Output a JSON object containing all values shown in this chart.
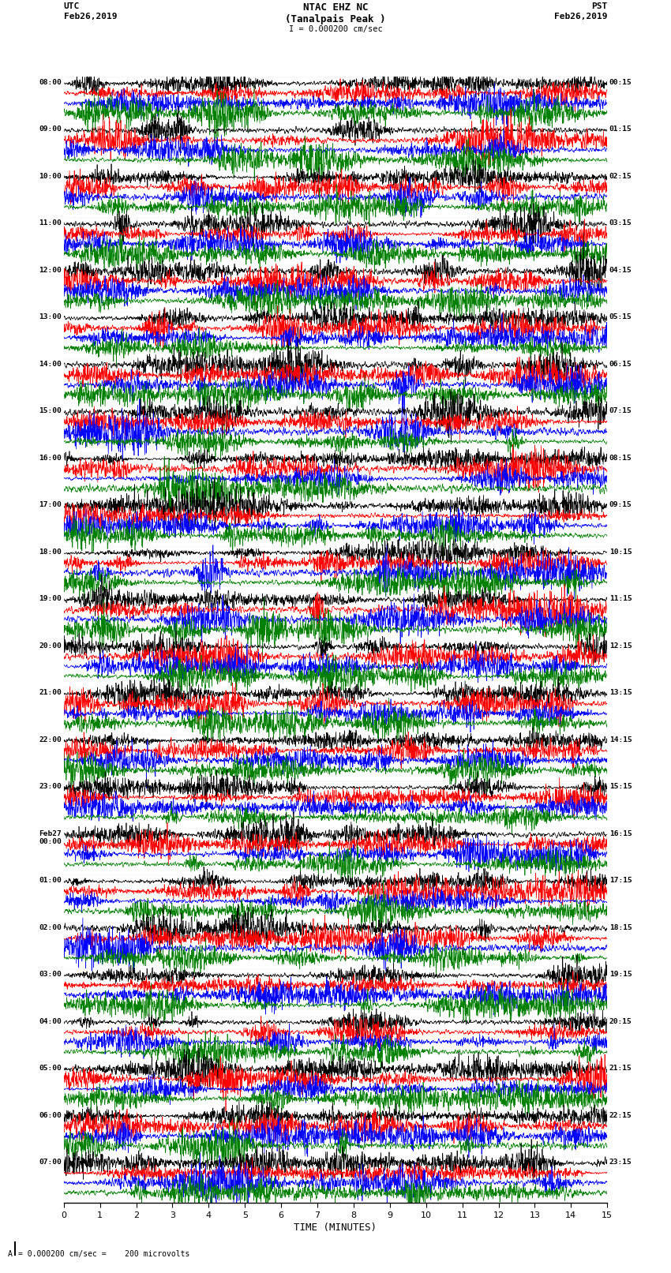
{
  "title_line1": "NTAC EHZ NC",
  "title_line2": "(Tanalpais Peak )",
  "title_line3": "I = 0.000200 cm/sec",
  "label_utc": "UTC",
  "label_pst": "PST",
  "date_left": "Feb26,2019",
  "date_right": "Feb26,2019",
  "xlabel": "TIME (MINUTES)",
  "scale_label": "= 0.000200 cm/sec =    200 microvolts",
  "left_times": [
    "08:00",
    "09:00",
    "10:00",
    "11:00",
    "12:00",
    "13:00",
    "14:00",
    "15:00",
    "16:00",
    "17:00",
    "18:00",
    "19:00",
    "20:00",
    "21:00",
    "22:00",
    "23:00",
    "Feb27\n00:00",
    "01:00",
    "02:00",
    "03:00",
    "04:00",
    "05:00",
    "06:00",
    "07:00"
  ],
  "right_times": [
    "00:15",
    "01:15",
    "02:15",
    "03:15",
    "04:15",
    "05:15",
    "06:15",
    "07:15",
    "08:15",
    "09:15",
    "10:15",
    "11:15",
    "12:15",
    "13:15",
    "14:15",
    "15:15",
    "16:15",
    "17:15",
    "18:15",
    "19:15",
    "20:15",
    "21:15",
    "22:15",
    "23:15"
  ],
  "colors": [
    "black",
    "red",
    "blue",
    "green"
  ],
  "n_rows": 24,
  "traces_per_row": 4,
  "x_min": 0,
  "x_max": 15,
  "x_ticks": [
    0,
    1,
    2,
    3,
    4,
    5,
    6,
    7,
    8,
    9,
    10,
    11,
    12,
    13,
    14,
    15
  ],
  "background_color": "white",
  "noise_seed": 42,
  "fig_width": 8.5,
  "fig_height": 16.13
}
